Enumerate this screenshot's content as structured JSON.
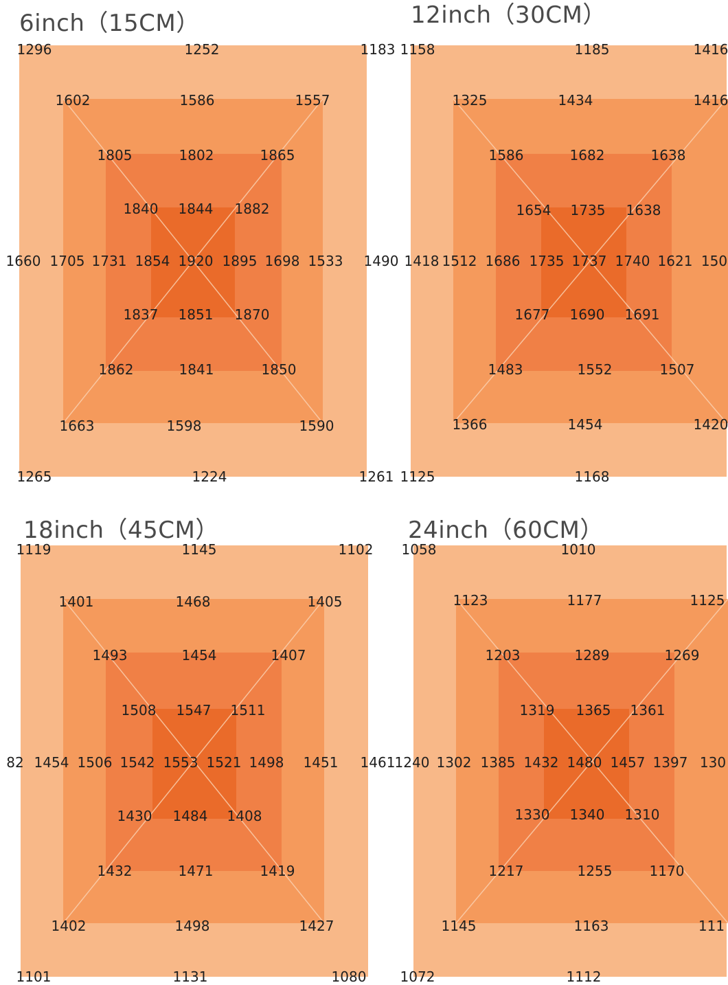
{
  "colors": {
    "ring1": "#f8b888",
    "ring2": "#f59a5c",
    "ring3": "#f08046",
    "ring4": "#ea6b2a",
    "lines": "#fbd3b4"
  },
  "panels": [
    {
      "title": "6inch（15CM）",
      "rows": [
        [
          "1296",
          "1252",
          "1183"
        ],
        [
          "1602",
          "1586",
          "1557"
        ],
        [
          "1805",
          "1802",
          "1865"
        ],
        [
          "1840",
          "1844",
          "1882"
        ],
        [
          "1660",
          "1705",
          "1731",
          "1854",
          "1920",
          "1895",
          "1698",
          "1533",
          "1490"
        ],
        [
          "1837",
          "1851",
          "1870"
        ],
        [
          "1862",
          "1841",
          "1850"
        ],
        [
          "1663",
          "1598",
          "1590"
        ],
        [
          "1265",
          "1224",
          "1261"
        ]
      ]
    },
    {
      "title": "12inch（30CM）",
      "rows": [
        [
          "1158",
          "1185",
          "1416"
        ],
        [
          "1325",
          "1434",
          "1416"
        ],
        [
          "1586",
          "1682",
          "1638"
        ],
        [
          "1654",
          "1735",
          "1638"
        ],
        [
          "1418",
          "1512",
          "1686",
          "1735",
          "1737",
          "1740",
          "1621",
          "150"
        ],
        [
          "1677",
          "1690",
          "1691"
        ],
        [
          "1483",
          "1552",
          "1507"
        ],
        [
          "1366",
          "1454",
          "1420"
        ],
        [
          "1125",
          "1168"
        ]
      ]
    },
    {
      "title": "18inch（45CM）",
      "rows": [
        [
          "1119",
          "1145",
          "1102"
        ],
        [
          "1401",
          "1468",
          "1405"
        ],
        [
          "1493",
          "1454",
          "1407"
        ],
        [
          "1508",
          "1547",
          "1511"
        ],
        [
          "82",
          "1454",
          "1506",
          "1542",
          "1553",
          "1521",
          "1498",
          "1451",
          "1461"
        ],
        [
          "1430",
          "1484",
          "1408"
        ],
        [
          "1432",
          "1471",
          "1419"
        ],
        [
          "1402",
          "1498",
          "1427"
        ],
        [
          "1101",
          "1131",
          "1080"
        ]
      ]
    },
    {
      "title": "24inch（60CM）",
      "rows": [
        [
          "1058",
          "1010"
        ],
        [
          "1123",
          "1177",
          "1125"
        ],
        [
          "1203",
          "1289",
          "1269"
        ],
        [
          "1319",
          "1365",
          "1361"
        ],
        [
          "1240",
          "1302",
          "1385",
          "1432",
          "1480",
          "1457",
          "1397",
          "130"
        ],
        [
          "1330",
          "1340",
          "1310"
        ],
        [
          "1217",
          "1255",
          "1170"
        ],
        [
          "1145",
          "1163",
          "111"
        ],
        [
          "1072",
          "1112"
        ]
      ]
    }
  ]
}
